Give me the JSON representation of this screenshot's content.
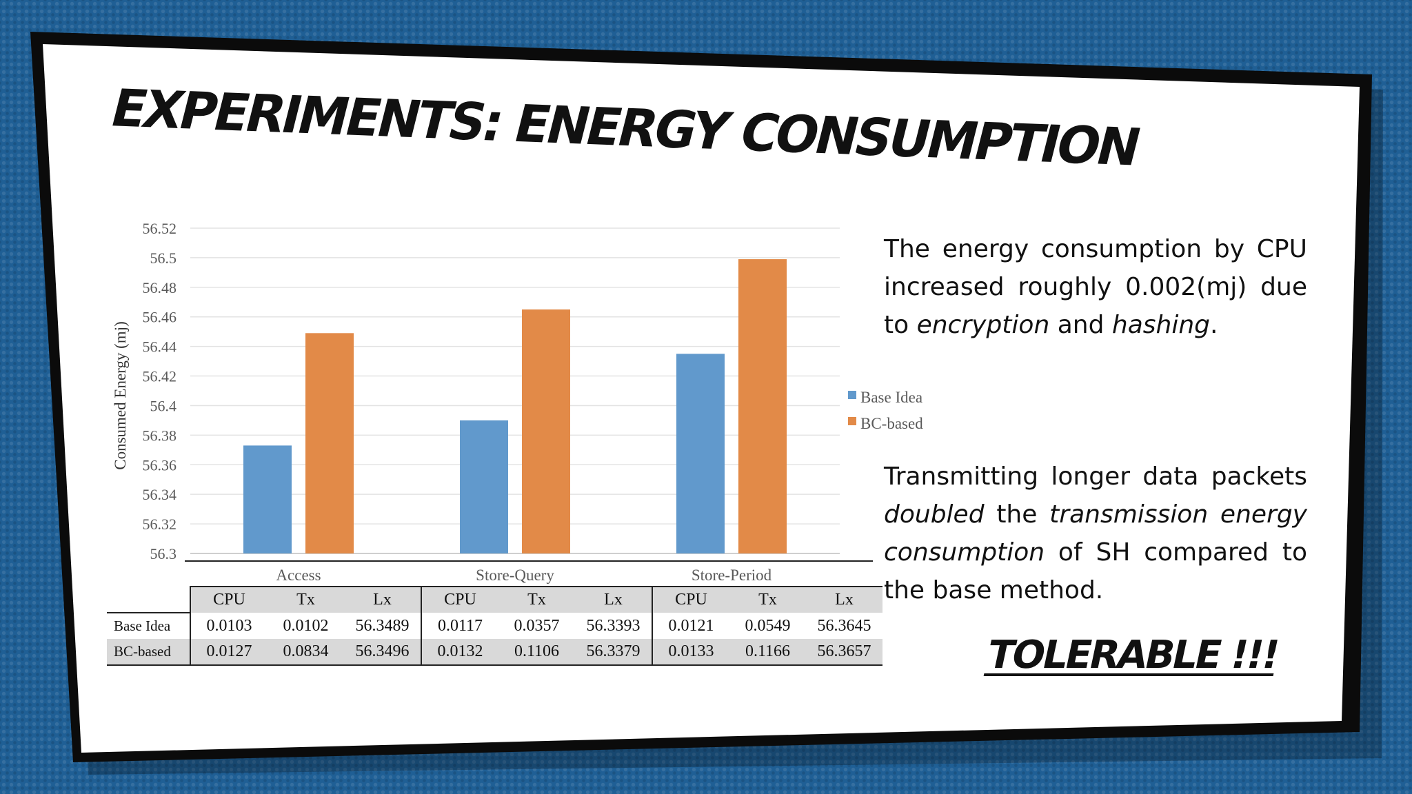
{
  "slide": {
    "title": "EXPERIMENTS: ENERGY CONSUMPTION",
    "tolerable": "TOLERABLE !!!"
  },
  "notes": {
    "note1": {
      "part1": "The energy consumption by CPU increased roughly 0.002(mj) due to ",
      "em1": "encryption",
      "part2": " and ",
      "em2": "hashing",
      "part3": "."
    },
    "note2": {
      "part1": "Transmitting longer data packets ",
      "em1": "doubled",
      "part2": " the ",
      "em2": "transmission energy consumption",
      "part3": " of SH compared to the base method."
    }
  },
  "colors": {
    "base_idea": "#6199cc",
    "bc_based": "#e28a48",
    "frame": "#0b0b0b",
    "background": "#1f5f95"
  },
  "chart_data": {
    "type": "bar",
    "title": "",
    "xlabel": "",
    "ylabel": "Consumed Energy (mj)",
    "categories": [
      "Access",
      "Store-Query",
      "Store-Period"
    ],
    "series": [
      {
        "name": "Base Idea",
        "values": [
          56.373,
          56.39,
          56.435
        ]
      },
      {
        "name": "BC-based",
        "values": [
          56.449,
          56.465,
          56.499
        ]
      }
    ],
    "ylim": [
      56.3,
      56.52
    ],
    "yticks": [
      "56.3",
      "56.32",
      "56.34",
      "56.36",
      "56.38",
      "56.4",
      "56.42",
      "56.44",
      "56.46",
      "56.48",
      "56.5",
      "56.52"
    ],
    "grid": true,
    "legend": "right",
    "table": {
      "groups": [
        "Access",
        "Store-Query",
        "Store-Period"
      ],
      "columns": [
        "CPU",
        "Tx",
        "Lx"
      ],
      "rows": [
        {
          "label": "Base Idea",
          "values": [
            "0.0103",
            "0.0102",
            "56.3489",
            "0.0117",
            "0.0357",
            "56.3393",
            "0.0121",
            "0.0549",
            "56.3645"
          ]
        },
        {
          "label": "BC-based",
          "values": [
            "0.0127",
            "0.0834",
            "56.3496",
            "0.0132",
            "0.1106",
            "56.3379",
            "0.0133",
            "0.1166",
            "56.3657"
          ]
        }
      ]
    }
  }
}
